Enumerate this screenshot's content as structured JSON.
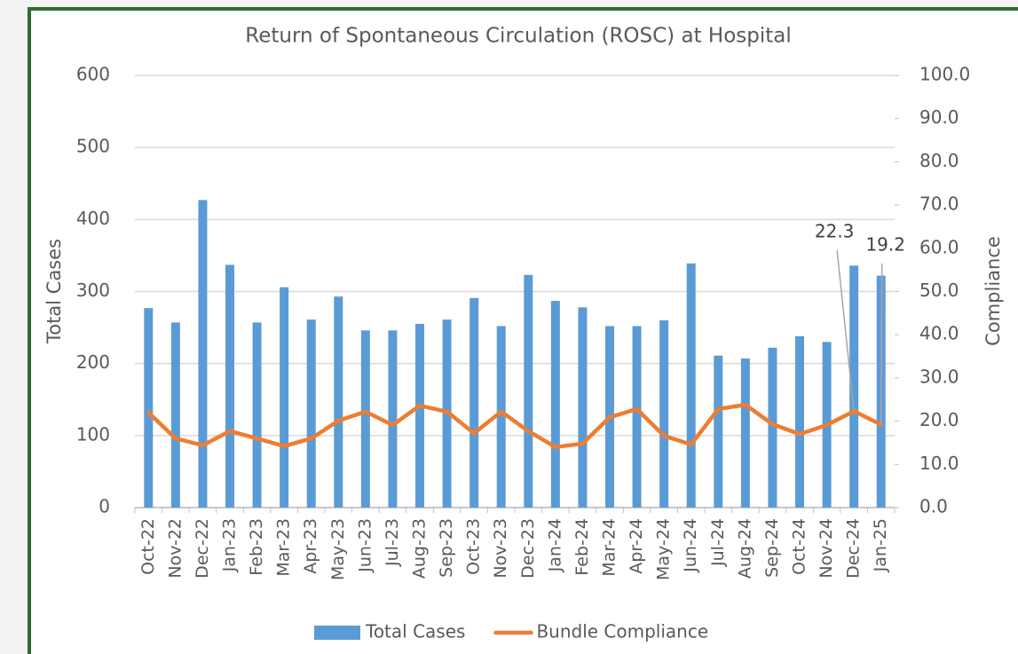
{
  "chart_data": {
    "type": "bar-line",
    "title": "Return of Spontaneous Circulation (ROSC) at Hospital",
    "y_label": "Total Cases",
    "y2_label": "Compliance",
    "categories": [
      "Oct-22",
      "Nov-22",
      "Dec-22",
      "Jan-23",
      "Feb-23",
      "Mar-23",
      "Apr-23",
      "May-23",
      "Jun-23",
      "Jul-23",
      "Aug-23",
      "Sep-23",
      "Oct-23",
      "Nov-23",
      "Dec-23",
      "Jan-24",
      "Feb-24",
      "Mar-24",
      "Apr-24",
      "May-24",
      "Jun-24",
      "Jul-24",
      "Aug-24",
      "Sep-24",
      "Oct-24",
      "Nov-24",
      "Dec-24",
      "Jan-25"
    ],
    "series": [
      {
        "name": "Total Cases",
        "type": "bar",
        "color": "#5b9bd5",
        "values": [
          277,
          257,
          427,
          337,
          257,
          306,
          261,
          293,
          246,
          246,
          255,
          261,
          291,
          252,
          323,
          287,
          278,
          252,
          252,
          260,
          339,
          211,
          207,
          222,
          238,
          230,
          336,
          322
        ]
      },
      {
        "name": "Bundle Compliance",
        "type": "line",
        "axis": "y2",
        "color": "#ed7d31",
        "values": [
          22,
          16,
          14.4,
          17.7,
          16,
          14.2,
          16,
          20.1,
          22.2,
          19.1,
          23.6,
          22.2,
          17.2,
          22.2,
          17.7,
          14,
          14.8,
          20.9,
          22.8,
          16.6,
          14.6,
          22.8,
          23.8,
          19.3,
          17,
          19.1,
          22.3,
          19.2
        ],
        "value_labels": [
          null,
          null,
          null,
          null,
          null,
          null,
          null,
          null,
          null,
          null,
          null,
          null,
          null,
          null,
          null,
          null,
          null,
          null,
          null,
          null,
          null,
          null,
          null,
          null,
          null,
          null,
          "22.3",
          "19.2"
        ]
      }
    ],
    "ylim": [
      0,
      600
    ],
    "yticks": [
      0,
      100,
      200,
      300,
      400,
      500,
      600
    ],
    "y2lim": [
      0,
      100
    ],
    "y2ticks": [
      {
        "value": 0,
        "label": "0.0"
      },
      {
        "value": 10,
        "label": "10.0"
      },
      {
        "value": 20,
        "label": "20.0"
      },
      {
        "value": 30,
        "label": "30.0"
      },
      {
        "value": 40,
        "label": "40.0"
      },
      {
        "value": 50,
        "label": "50.0"
      },
      {
        "value": 60,
        "label": "60.0"
      },
      {
        "value": 70,
        "label": "70.0"
      },
      {
        "value": 80,
        "label": "80.0"
      },
      {
        "value": 90,
        "label": "90.0"
      },
      {
        "value": 100,
        "label": "100.0"
      }
    ],
    "grid": true,
    "legend": "bottom"
  }
}
